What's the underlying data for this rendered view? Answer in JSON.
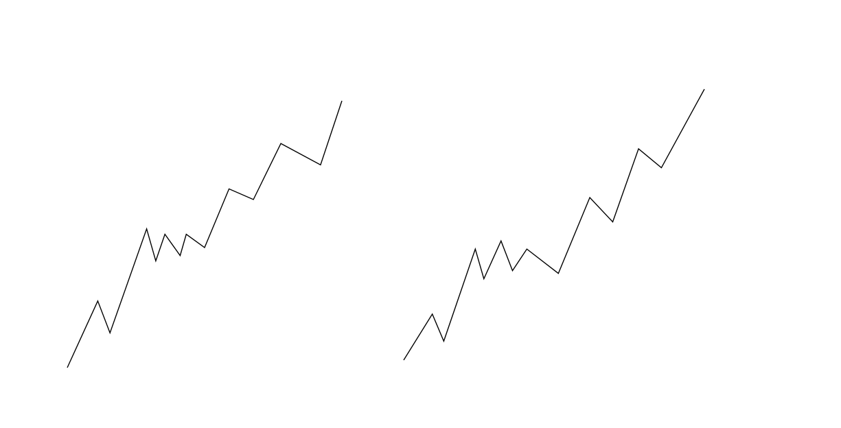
{
  "chart_data": [
    {
      "type": "line",
      "title": "",
      "xlabel": "",
      "ylabel": "",
      "grid": false,
      "axes_visible": false,
      "line_color": "#000000",
      "xlim": [
        0,
        14
      ],
      "ylim": [
        0,
        10
      ],
      "series": [
        {
          "x": [
            0,
            1,
            1.4,
            2.6,
            2.9,
            3.2,
            3.7,
            3.9,
            4.5,
            5.3,
            6.1,
            7.0,
            8.3,
            9.0
          ],
          "y": [
            0,
            2.5,
            1.3,
            5.2,
            4.0,
            5.0,
            4.2,
            5.0,
            4.5,
            6.7,
            6.3,
            8.4,
            7.6,
            10.0
          ]
        }
      ]
    },
    {
      "type": "line",
      "title": "",
      "xlabel": "",
      "ylabel": "",
      "grid": false,
      "axes_visible": false,
      "line_color": "#000000",
      "xlim": [
        0,
        14
      ],
      "ylim": [
        0,
        10
      ],
      "series": [
        {
          "x": [
            0,
            1,
            1.4,
            2.5,
            2.8,
            3.4,
            3.8,
            4.3,
            5.4,
            6.5,
            7.3,
            8.2,
            9.0,
            10.5
          ],
          "y": [
            0,
            1.7,
            0.7,
            4.1,
            3.0,
            4.4,
            3.3,
            4.1,
            3.2,
            6.0,
            5.1,
            7.8,
            7.1,
            10.0
          ]
        }
      ]
    }
  ]
}
